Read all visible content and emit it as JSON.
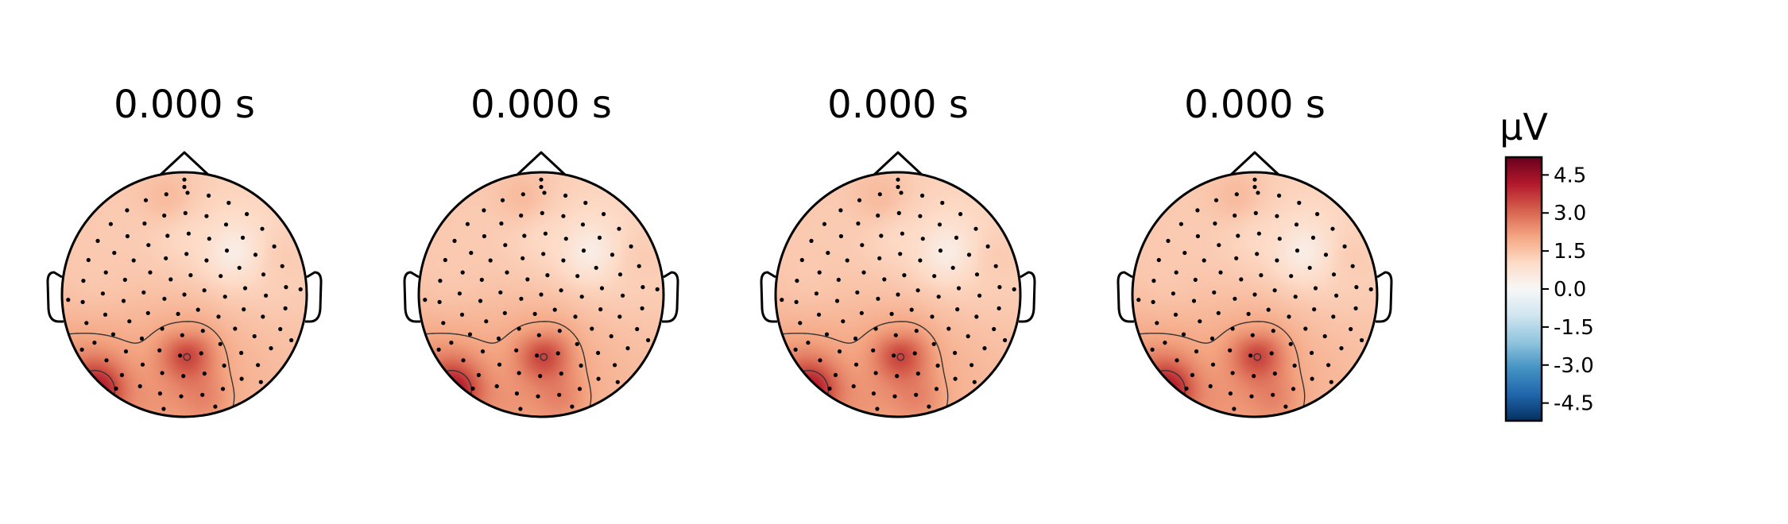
{
  "chart_data": {
    "type": "heatmap",
    "subtype": "eeg-topomap",
    "panels": [
      {
        "title": "0.000 s"
      },
      {
        "title": "0.000 s"
      },
      {
        "title": "0.000 s"
      },
      {
        "title": "0.000 s"
      }
    ],
    "colorbar": {
      "unit": "μV",
      "ticks": [
        "4.5",
        "3.0",
        "1.5",
        "0.0",
        "-1.5",
        "-3.0",
        "-4.5"
      ],
      "tick_values": [
        4.5,
        3.0,
        1.5,
        0.0,
        -1.5,
        -3.0,
        -4.5
      ],
      "vmin": -5.2,
      "vmax": 5.2,
      "colormap": "RdBu_r"
    },
    "sources": [
      {
        "u": 0.0,
        "v": -0.3,
        "value": 1.7
      },
      {
        "u": 0.02,
        "v": -0.5,
        "value": 4.2
      },
      {
        "u": -0.72,
        "v": -0.78,
        "value": 5.0
      },
      {
        "u": 0.15,
        "v": -0.85,
        "value": 2.8
      },
      {
        "u": -0.3,
        "v": -0.9,
        "value": 2.4
      },
      {
        "u": 0.55,
        "v": -0.7,
        "value": 1.8
      },
      {
        "u": -0.15,
        "v": 0.8,
        "value": 1.8
      },
      {
        "u": 0.4,
        "v": 0.35,
        "value": 0.1
      },
      {
        "u": 0.8,
        "v": 0.3,
        "value": 1.4
      },
      {
        "u": -0.7,
        "v": 0.2,
        "value": 1.4
      },
      {
        "u": 0.0,
        "v": 0.5,
        "value": 1.0
      }
    ],
    "baseline": 1.0,
    "contour_levels": [
      2.0,
      3.5
    ]
  },
  "colors": {
    "outline": "#000000",
    "sensor": "#000000",
    "contour": "#333333"
  }
}
